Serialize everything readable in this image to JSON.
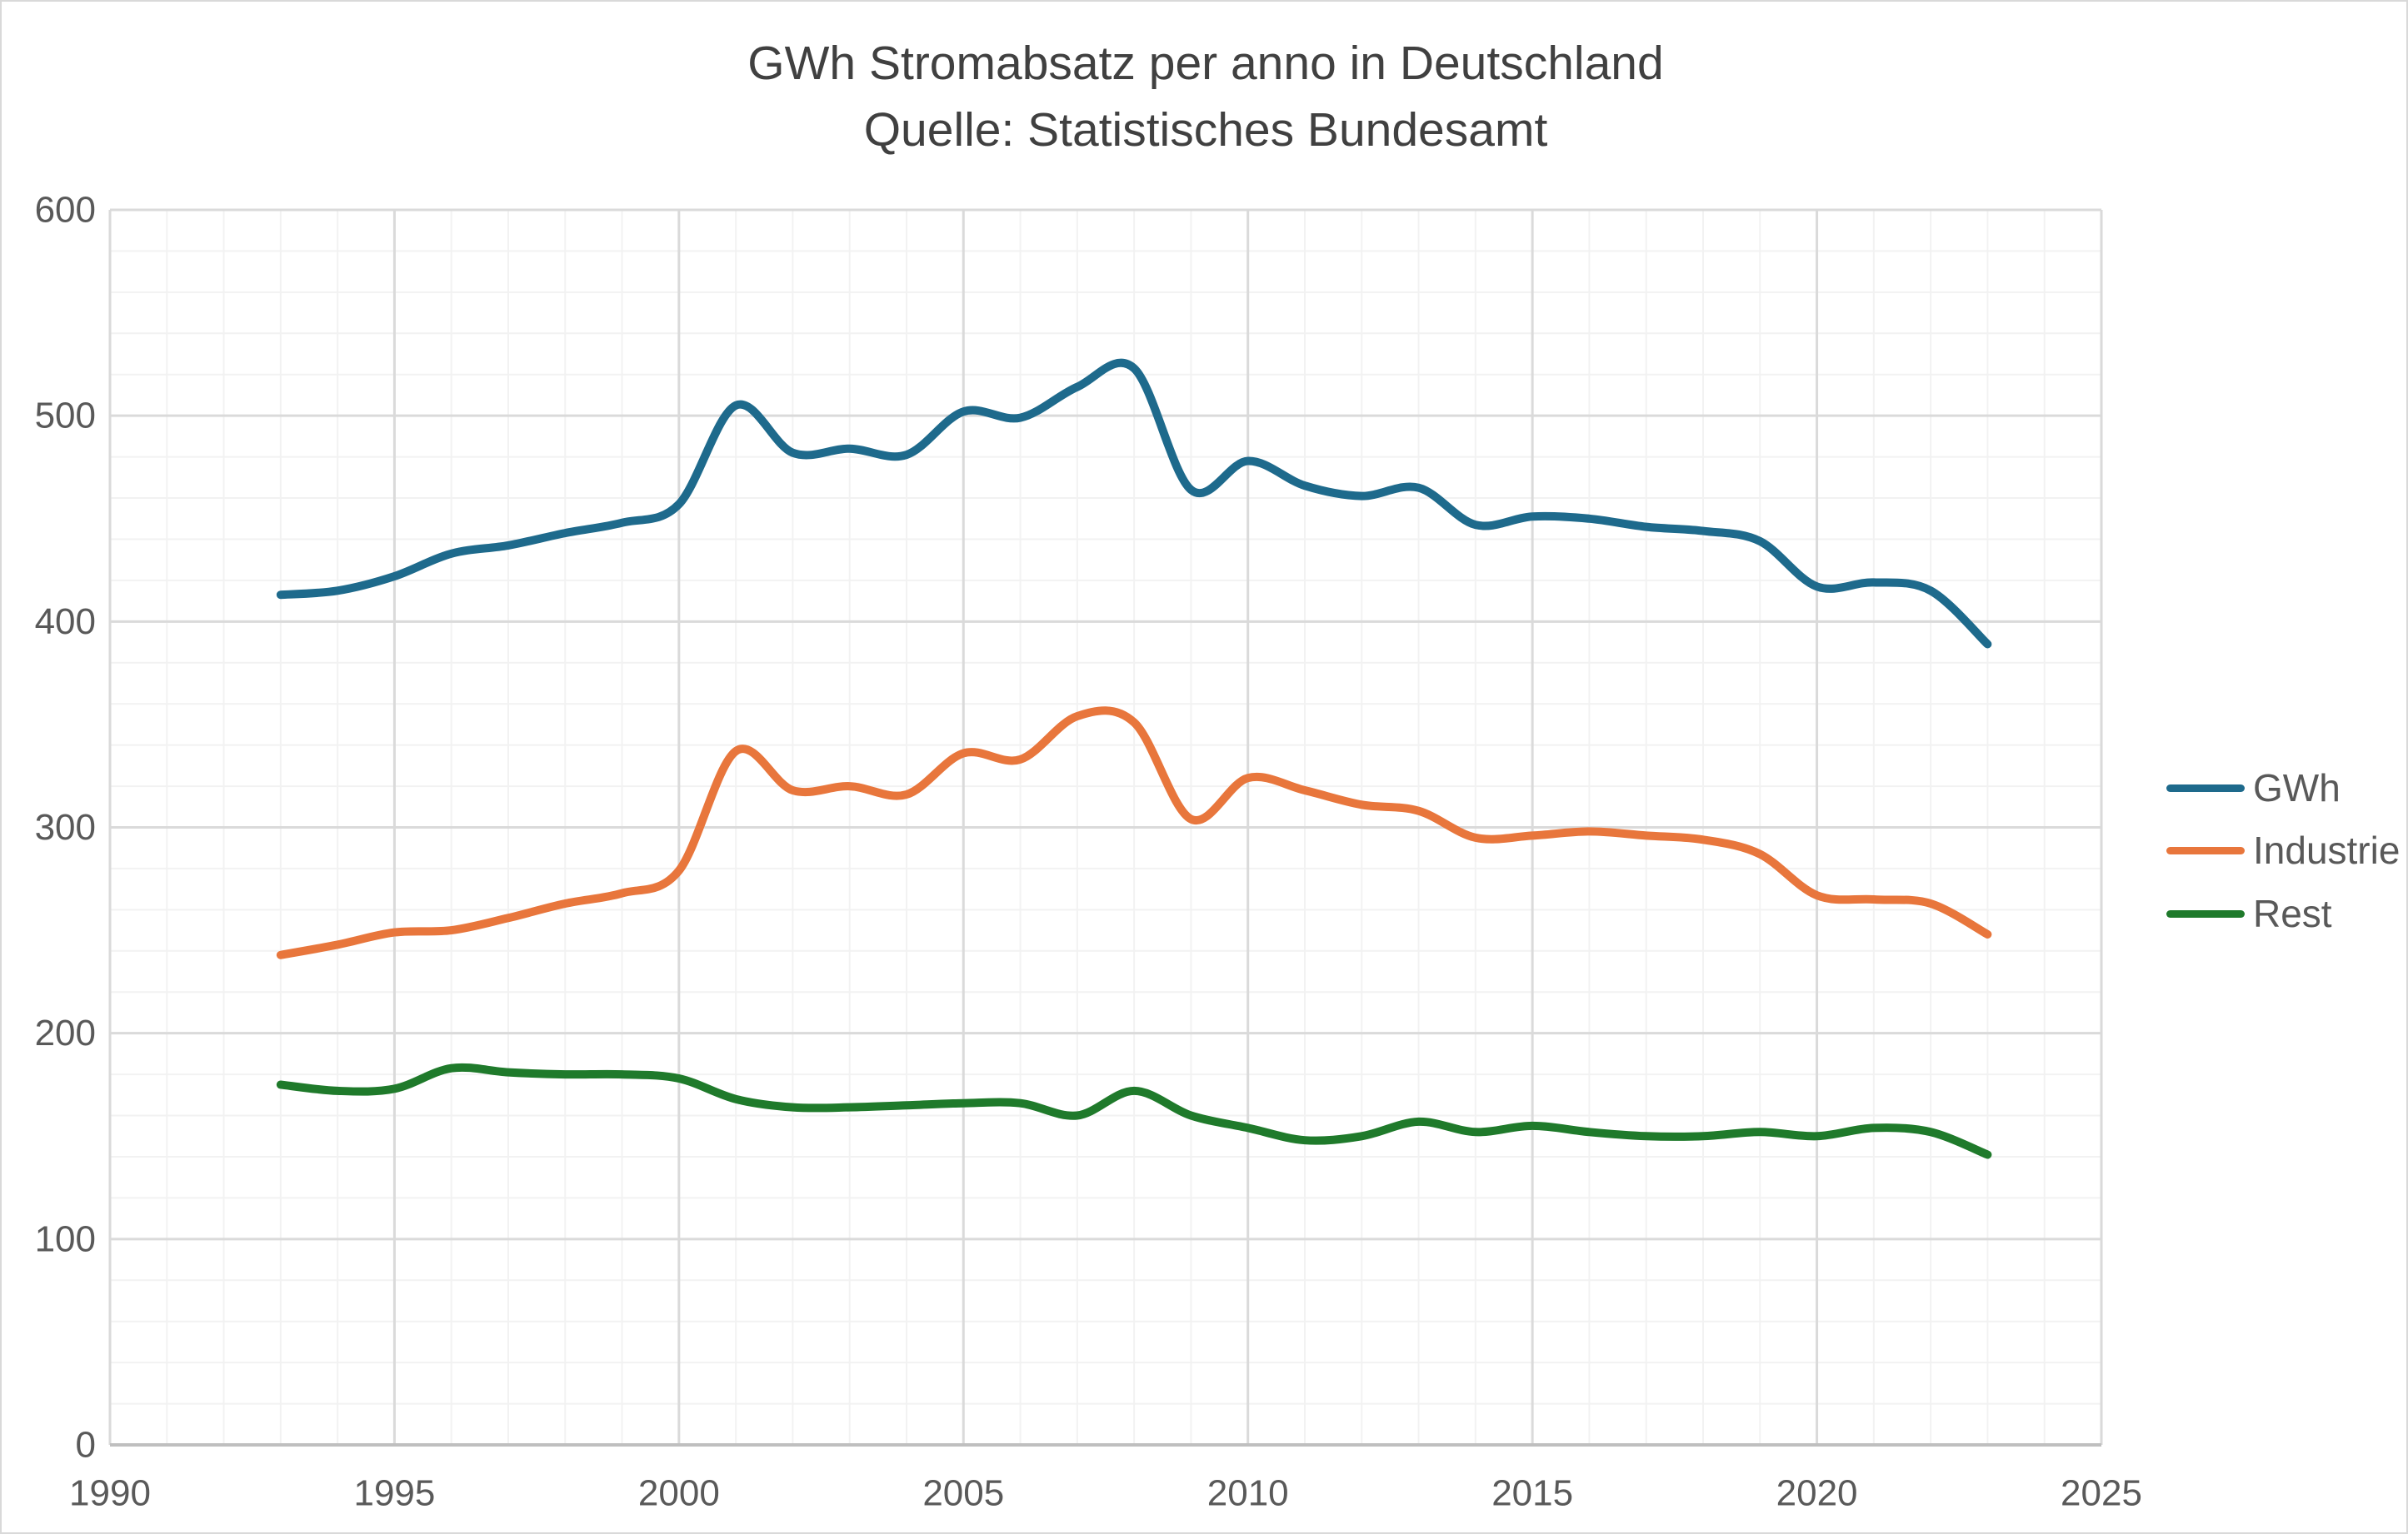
{
  "title": {
    "line1": "GWh Stromabsatz per anno in Deutschland",
    "line2": "Quelle: Statistisches Bundesamt"
  },
  "legend": {
    "items": [
      {
        "label": "GWh",
        "color": "#1E6A8C"
      },
      {
        "label": "Industrie",
        "color": "#E8763C"
      },
      {
        "label": "Rest",
        "color": "#1F7A2B"
      }
    ]
  },
  "colors": {
    "title_text": "#404040",
    "tick_text": "#595959",
    "grid_minor": "#F2F2F2",
    "grid_major": "#DADADA",
    "axis_line": "#BFBFBF",
    "frame_border": "#D9D9D9",
    "background": "#FFFFFF",
    "series_gwh": "#1E6A8C",
    "series_industrie": "#E8763C",
    "series_rest": "#1F7A2B"
  },
  "chart_data": {
    "type": "line",
    "smoothed": true,
    "title": "GWh Stromabsatz per anno in Deutschland",
    "subtitle": "Quelle: Statistisches Bundesamt",
    "xlabel": "",
    "ylabel": "",
    "xlim": [
      1990,
      2025
    ],
    "ylim": [
      0,
      600
    ],
    "x_ticks": [
      1990,
      1995,
      2000,
      2005,
      2010,
      2015,
      2020,
      2025
    ],
    "y_ticks": [
      0,
      100,
      200,
      300,
      400,
      500,
      600
    ],
    "grid": {
      "minor_x_step": 1,
      "major_x_step": 5,
      "minor_y_step": 20,
      "major_y_step": 100,
      "visible": true
    },
    "legend_position": "right",
    "x": [
      1993,
      1994,
      1995,
      1996,
      1997,
      1998,
      1999,
      2000,
      2001,
      2002,
      2003,
      2004,
      2005,
      2006,
      2007,
      2008,
      2009,
      2010,
      2011,
      2012,
      2013,
      2014,
      2015,
      2016,
      2017,
      2018,
      2019,
      2020,
      2021,
      2022,
      2023
    ],
    "series": [
      {
        "name": "GWh",
        "color": "#1E6A8C",
        "values": [
          413,
          415,
          422,
          433,
          437,
          443,
          448,
          457,
          505,
          482,
          484,
          481,
          502,
          499,
          514,
          523,
          464,
          478,
          466,
          461,
          465,
          447,
          451,
          450,
          446,
          444,
          439,
          417,
          419,
          415,
          389
        ]
      },
      {
        "name": "Industrie",
        "color": "#E8763C",
        "values": [
          238,
          243,
          249,
          250,
          256,
          263,
          268,
          279,
          337,
          318,
          320,
          316,
          336,
          333,
          354,
          351,
          304,
          324,
          318,
          311,
          308,
          295,
          296,
          298,
          296,
          294,
          287,
          267,
          265,
          263,
          248
        ]
      },
      {
        "name": "Rest",
        "color": "#1F7A2B",
        "values": [
          175,
          172,
          173,
          183,
          181,
          180,
          180,
          178,
          168,
          164,
          164,
          165,
          166,
          166,
          160,
          172,
          160,
          154,
          148,
          150,
          157,
          152,
          155,
          152,
          150,
          150,
          152,
          150,
          154,
          152,
          141
        ]
      }
    ]
  }
}
